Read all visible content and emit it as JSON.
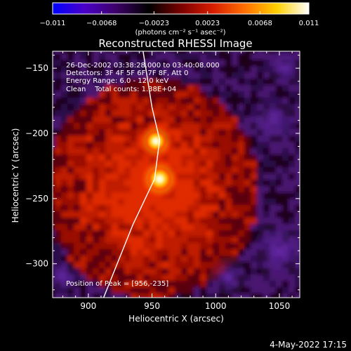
{
  "chart_data": {
    "type": "heatmap",
    "title": "Reconstructed RHESSI Image",
    "xlabel": "Heliocentric X (arcsec)",
    "ylabel": "Heliocentric Y (arcsec)",
    "xlim": [
      872,
      1066
    ],
    "ylim": [
      -326,
      -137
    ],
    "xticks": [
      900,
      950,
      1000,
      1050
    ],
    "yticks": [
      -150,
      -200,
      -250,
      -300
    ],
    "colorbar": {
      "range": [
        -0.011,
        0.011
      ],
      "tick_labels": [
        "−0.011",
        "−0.0068",
        "−0.0023",
        "0.0023",
        "0.0068",
        "0.011"
      ],
      "tick_values": [
        -0.011,
        -0.0068,
        -0.0023,
        0.0023,
        0.0068,
        0.011
      ],
      "unit_label": "(photons cm⁻² s⁻¹ asec⁻²)",
      "colormap": [
        "#0000ff",
        "#4b00c8",
        "#3c0066",
        "#000000",
        "#7a0000",
        "#d81d00",
        "#ff7000",
        "#ffd000",
        "#ffffff"
      ]
    },
    "annotations": [
      "26-Dec-2002 03:38:28.000 to 03:40:08.000",
      "Detectors: 3F 4F 5F 6F 7F 8F, Att 0",
      "Energy Range: 6.0 - 12.0 keV",
      "Clean    Total counts: 1.38E+04"
    ],
    "peak_label": "Position of Peak = [956,-235]",
    "peak": [
      956,
      -235
    ],
    "sources": [
      {
        "x": 956,
        "y": -235,
        "value": 0.011
      },
      {
        "x": 953,
        "y": -206,
        "value": 0.0085
      }
    ],
    "limb": [
      [
        943,
        -137
      ],
      [
        950,
        -180
      ],
      [
        956,
        -205
      ],
      [
        952,
        -235
      ],
      [
        935,
        -270
      ],
      [
        912,
        -326
      ]
    ],
    "footer": "4-May-2022 17:15"
  }
}
